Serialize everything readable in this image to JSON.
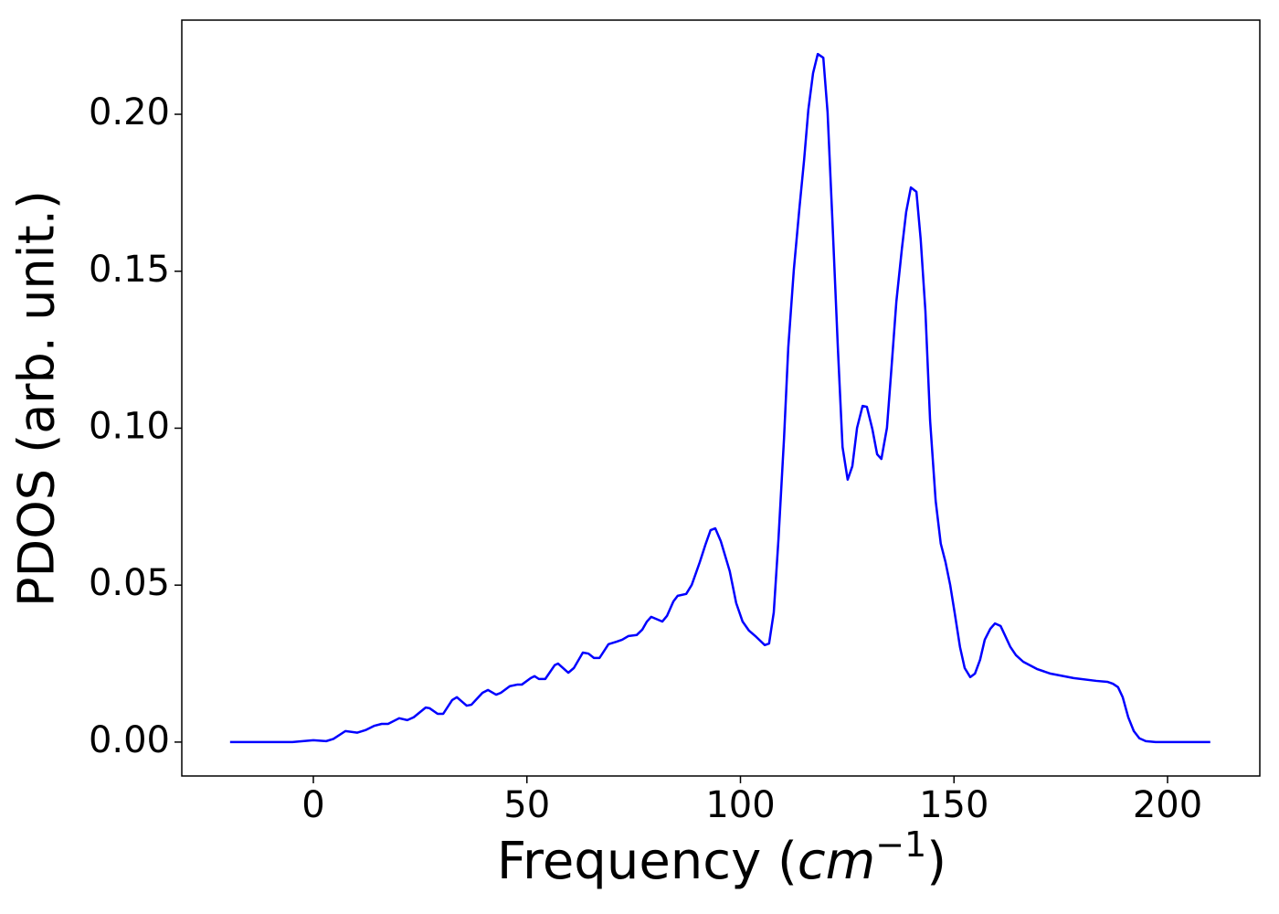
{
  "chart_data": {
    "type": "line",
    "xlabel": [
      "Frequency (",
      "cm",
      "−1",
      ")"
    ],
    "ylabel": "PDOS (arb. unit.)",
    "xlim": [
      -30.8,
      221.6
    ],
    "ylim": [
      -0.0108,
      0.23
    ],
    "xticks": [
      0,
      50,
      100,
      150,
      200
    ],
    "yticks": [
      {
        "value": 0,
        "label": "0.00"
      },
      {
        "value": 0.05,
        "label": "0.05"
      },
      {
        "value": 0.1,
        "label": "0.10"
      },
      {
        "value": 0.15,
        "label": "0.15"
      },
      {
        "value": 0.2,
        "label": "0.20"
      }
    ],
    "grid": false,
    "x": [
      -19.5,
      -4.9,
      0,
      3,
      4.7,
      7.5,
      10.3,
      12.2,
      14.3,
      16,
      17.5,
      20.1,
      22,
      23.5,
      26.3,
      27.2,
      29.1,
      30.4,
      32.5,
      33.6,
      35.9,
      37,
      39.6,
      40.9,
      42.8,
      43.9,
      46,
      47.7,
      48.8,
      50.9,
      51.8,
      52.8,
      54.3,
      56.5,
      57.3,
      59.7,
      61,
      63.1,
      64.4,
      65.7,
      67,
      69.1,
      71,
      72.3,
      73.8,
      75.7,
      77,
      78.1,
      79.1,
      81.7,
      82.8,
      84.3,
      85.3,
      87.3,
      88.6,
      90.5,
      91.8,
      93,
      94.1,
      95.4,
      97.5,
      99,
      100.5,
      102,
      103.7,
      105.7,
      106.7,
      107.8,
      108.9,
      110.2,
      111.2,
      112.5,
      113.8,
      114.9,
      115.9,
      117,
      118.1,
      119.4,
      120.4,
      121.5,
      122.8,
      123.9,
      125.1,
      126.2,
      127.3,
      128.6,
      129.6,
      130.9,
      132,
      133,
      134.3,
      135.4,
      136.5,
      137.8,
      138.8,
      139.9,
      141.2,
      142.2,
      143.3,
      144.4,
      145.7,
      146.9,
      148,
      149.1,
      150.2,
      151.4,
      152.5,
      153.8,
      154.9,
      156.1,
      157.2,
      158.5,
      159.6,
      160.9,
      161.9,
      163.2,
      164.5,
      166.2,
      169.4,
      172.6,
      178,
      183.3,
      185.9,
      187.2,
      188.4,
      189.5,
      190.8,
      192.1,
      193.4,
      194.9,
      197.2,
      210
    ],
    "series": [
      {
        "color": "#0000ff",
        "values": [
          0,
          0,
          0.0006,
          0.0003,
          0.001,
          0.0035,
          0.003,
          0.0038,
          0.0052,
          0.0058,
          0.0058,
          0.0076,
          0.007,
          0.0079,
          0.011,
          0.0108,
          0.009,
          0.009,
          0.0134,
          0.0143,
          0.0116,
          0.0119,
          0.0157,
          0.0166,
          0.0151,
          0.0157,
          0.0178,
          0.0183,
          0.0183,
          0.0204,
          0.021,
          0.0201,
          0.0201,
          0.0245,
          0.025,
          0.0221,
          0.0236,
          0.0285,
          0.0282,
          0.0268,
          0.0268,
          0.0312,
          0.032,
          0.0326,
          0.0338,
          0.0341,
          0.0358,
          0.0384,
          0.0399,
          0.0384,
          0.0402,
          0.0448,
          0.0466,
          0.0472,
          0.0501,
          0.0574,
          0.0629,
          0.0675,
          0.0681,
          0.064,
          0.0544,
          0.0443,
          0.0384,
          0.0355,
          0.0335,
          0.0309,
          0.0314,
          0.0413,
          0.0646,
          0.0967,
          0.1258,
          0.1505,
          0.17,
          0.1854,
          0.2015,
          0.2131,
          0.2192,
          0.218,
          0.2006,
          0.1671,
          0.1258,
          0.094,
          0.0836,
          0.0879,
          0.1001,
          0.1071,
          0.1068,
          0.0996,
          0.0917,
          0.0902,
          0.1001,
          0.1199,
          0.1403,
          0.1572,
          0.1689,
          0.1767,
          0.1753,
          0.1601,
          0.1374,
          0.1025,
          0.0769,
          0.0632,
          0.0574,
          0.0501,
          0.0408,
          0.0303,
          0.0236,
          0.0207,
          0.0218,
          0.0262,
          0.0326,
          0.0361,
          0.0378,
          0.037,
          0.0341,
          0.0303,
          0.0277,
          0.0256,
          0.0233,
          0.0218,
          0.0204,
          0.0195,
          0.0192,
          0.0186,
          0.0175,
          0.0143,
          0.0079,
          0.0035,
          0.0012,
          0.0003,
          0,
          0
        ]
      }
    ]
  }
}
